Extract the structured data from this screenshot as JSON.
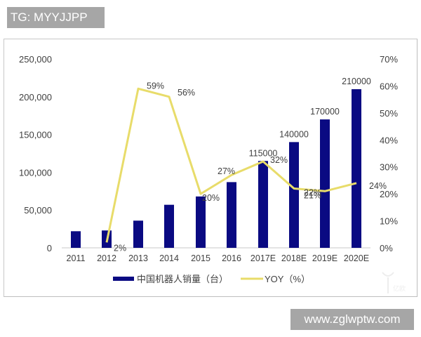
{
  "watermark_top": "TG: MYYJJPP",
  "watermark_bottom": "www.zglwptw.com",
  "colors": {
    "bar": "#0a0a82",
    "line": "#e8dc6a",
    "axis_text": "#404040",
    "frame": "#c8c8c8"
  },
  "chart_data": {
    "type": "bar+line",
    "title": "",
    "categories": [
      "2011",
      "2012",
      "2013",
      "2014",
      "2015",
      "2016",
      "2017E",
      "2018E",
      "2019E",
      "2020E"
    ],
    "series": [
      {
        "name": "中国机器人销量（台）",
        "type": "bar",
        "axis": "left",
        "values": [
          22000,
          23000,
          36000,
          57000,
          68000,
          87000,
          115000,
          140000,
          170000,
          210000
        ],
        "labels": [
          "",
          "",
          "",
          "",
          "",
          "",
          "115000",
          "140000",
          "170000",
          "210000"
        ]
      },
      {
        "name": "YOY（%）",
        "type": "line",
        "axis": "right",
        "values": [
          null,
          2,
          59,
          56,
          20,
          27,
          32,
          22,
          21,
          24
        ],
        "labels": [
          "",
          "2%",
          "59%",
          "56%",
          "20%",
          "27%",
          "32%",
          "22%",
          "21%",
          "24%"
        ]
      }
    ],
    "left_axis": {
      "ylim": [
        0,
        250000
      ],
      "ticks": [
        "0",
        "50,000",
        "100,000",
        "150,000",
        "200,000",
        "250,000"
      ]
    },
    "right_axis": {
      "ylim": [
        0,
        70
      ],
      "ticks": [
        "0%",
        "10%",
        "20%",
        "30%",
        "40%",
        "50%",
        "60%",
        "70%"
      ]
    },
    "xlabel": "",
    "ylabel": "",
    "grid": false,
    "legend_position": "bottom",
    "legend": [
      "中国机器人销量（台）",
      "YOY（%）"
    ]
  }
}
